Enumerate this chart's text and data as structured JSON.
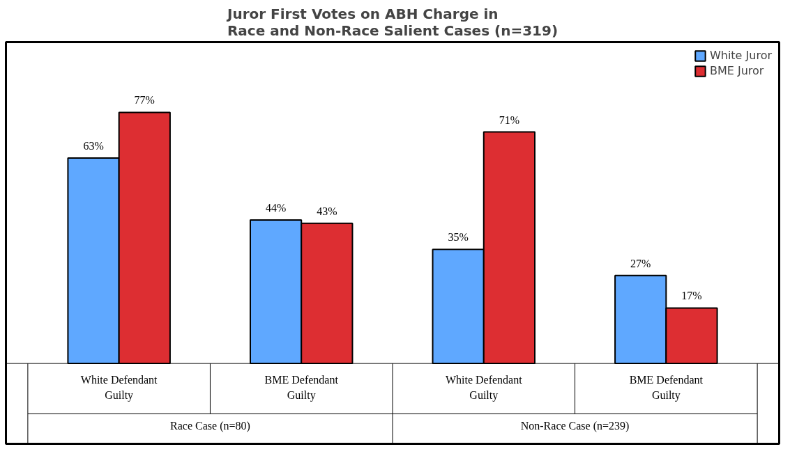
{
  "chart_data": {
    "type": "bar",
    "title": "Juror First Votes on ABH Charge in\nRace and Non-Race Salient Cases (n=319)",
    "categories": [
      "White Defendant\nGuilty",
      "BME Defendant\nGuilty",
      "White Defendant\nGuilty",
      "BME Defendant\nGuilty"
    ],
    "series": [
      {
        "name": "White Juror",
        "color": "#5fa8ff",
        "values": [
          63,
          44,
          35,
          27
        ],
        "value_labels": [
          "63%",
          "44%",
          "35%",
          "27%"
        ]
      },
      {
        "name": "BME Juror",
        "color": "#dd2e32",
        "values": [
          77,
          43,
          71,
          17
        ],
        "value_labels": [
          "77%",
          "43%",
          "71%",
          "17%"
        ]
      }
    ],
    "annotations": [
      "Race Case (n=80)",
      "Non-Race Case (n=239)"
    ],
    "legend": "top right",
    "grid": false
  }
}
